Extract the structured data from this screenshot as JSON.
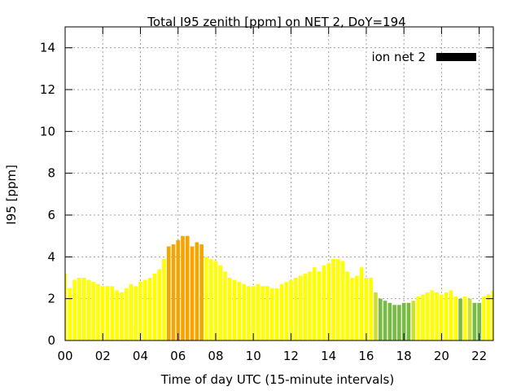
{
  "chart_data": {
    "type": "bar",
    "title": "Total I95 zenith [ppm] on NET 2, DoY=194",
    "xlabel": "Time of day UTC (15-minute intervals)",
    "ylabel": "I95 [ppm]",
    "xlim": [
      0,
      22.75
    ],
    "ylim": [
      0,
      15
    ],
    "xticks": [
      "00",
      "02",
      "04",
      "06",
      "08",
      "10",
      "12",
      "14",
      "16",
      "18",
      "20",
      "22"
    ],
    "yticks": [
      "0",
      "2",
      "4",
      "6",
      "8",
      "10",
      "12",
      "14"
    ],
    "grid": true,
    "legend": {
      "label": "ion net 2",
      "color": "#000000",
      "placement": "top-right"
    },
    "interval_hours": 0.25,
    "start_hour": 0,
    "colors": {
      "yellow": "#ffff00",
      "yellow_green": "#ccdd33",
      "orange": "#f5a500",
      "green": "#77bb44"
    },
    "values": [
      3.2,
      2.5,
      2.9,
      3.0,
      3.0,
      2.9,
      2.8,
      2.7,
      2.6,
      2.6,
      2.6,
      2.4,
      2.3,
      2.5,
      2.7,
      2.6,
      2.8,
      2.9,
      3.0,
      3.2,
      3.4,
      3.9,
      4.5,
      4.6,
      4.8,
      5.0,
      5.0,
      4.5,
      4.7,
      4.6,
      4.0,
      3.9,
      3.8,
      3.6,
      3.3,
      3.0,
      2.9,
      2.8,
      2.7,
      2.6,
      2.6,
      2.7,
      2.6,
      2.6,
      2.5,
      2.5,
      2.7,
      2.8,
      2.9,
      3.0,
      3.1,
      3.2,
      3.3,
      3.5,
      3.3,
      3.6,
      3.7,
      3.9,
      3.9,
      3.8,
      3.3,
      3.0,
      3.1,
      3.5,
      3.0,
      3.0,
      2.3,
      2.0,
      1.9,
      1.8,
      1.7,
      1.7,
      1.8,
      1.8,
      1.9,
      2.1,
      2.2,
      2.3,
      2.4,
      2.3,
      2.2,
      2.3,
      2.4,
      2.1,
      2.0,
      2.1,
      2.0,
      1.8,
      1.8,
      2.1,
      2.2,
      2.4
    ],
    "bar_colors": [
      "yellow",
      "yellow",
      "yellow",
      "yellow",
      "yellow",
      "yellow",
      "yellow",
      "yellow",
      "yellow",
      "yellow",
      "yellow",
      "yellow",
      "yellow",
      "yellow",
      "yellow",
      "yellow",
      "yellow",
      "yellow",
      "yellow",
      "yellow",
      "yellow",
      "yellow",
      "orange",
      "orange",
      "orange",
      "orange",
      "orange",
      "orange",
      "orange",
      "orange",
      "yellow",
      "yellow",
      "yellow",
      "yellow",
      "yellow",
      "yellow",
      "yellow",
      "yellow",
      "yellow",
      "yellow",
      "yellow",
      "yellow",
      "yellow",
      "yellow",
      "yellow",
      "yellow",
      "yellow",
      "yellow",
      "yellow",
      "yellow",
      "yellow",
      "yellow",
      "yellow",
      "yellow",
      "yellow",
      "yellow",
      "yellow",
      "yellow",
      "yellow",
      "yellow",
      "yellow",
      "yellow",
      "yellow",
      "yellow",
      "yellow",
      "yellow",
      "yellow_green",
      "green",
      "green",
      "green",
      "green",
      "green",
      "green",
      "green",
      "yellow_green",
      "yellow",
      "yellow",
      "yellow",
      "yellow",
      "yellow",
      "yellow",
      "yellow",
      "yellow",
      "yellow",
      "green",
      "yellow",
      "yellow_green",
      "green",
      "green",
      "yellow",
      "yellow",
      "yellow"
    ]
  }
}
